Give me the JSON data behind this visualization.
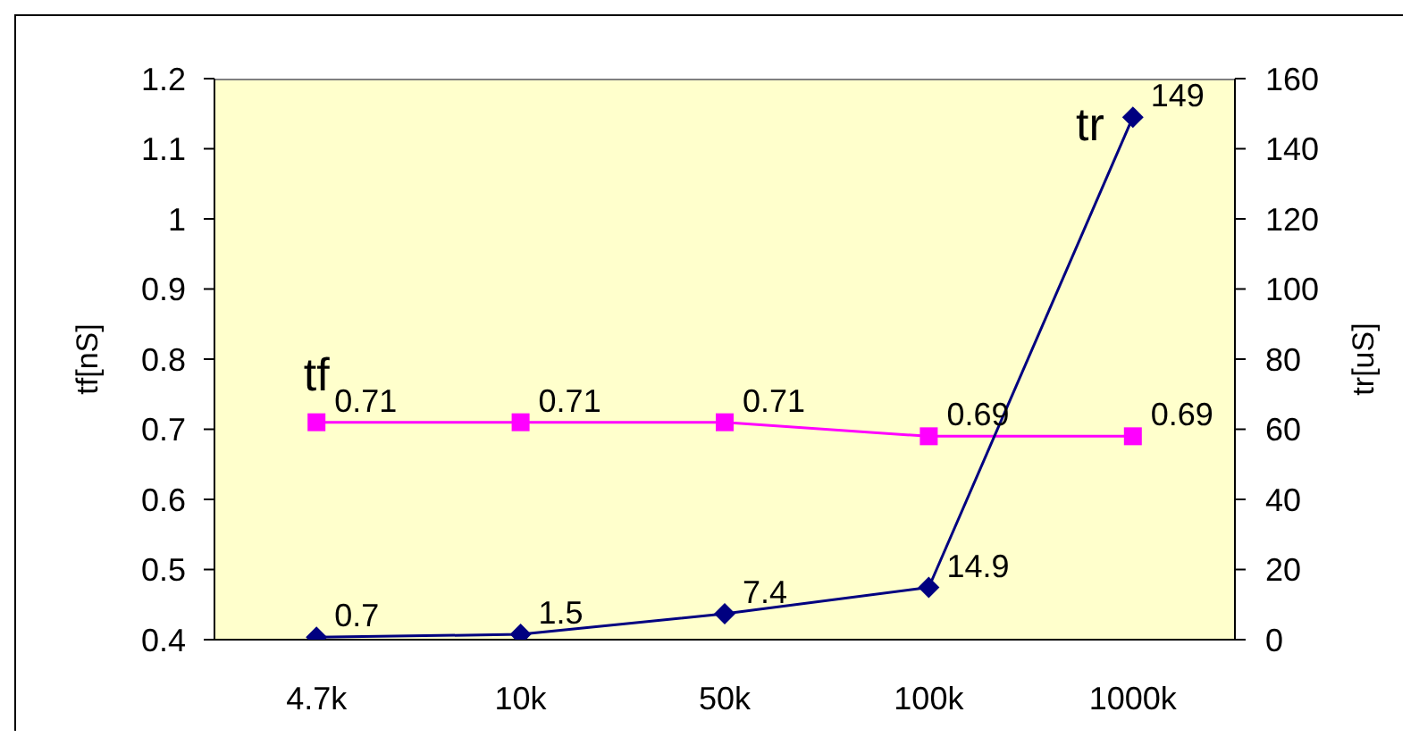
{
  "chart_data": {
    "type": "line",
    "categories": [
      "4.7k",
      "10k",
      "50k",
      "100k",
      "1000k"
    ],
    "ylabel": "tf[nS]",
    "y2label": "tr[uS]",
    "ylim": [
      0.4,
      1.2
    ],
    "yticks": [
      0.4,
      0.5,
      0.6,
      0.7,
      0.8,
      0.9,
      1,
      1.1,
      1.2
    ],
    "y2lim": [
      0,
      160
    ],
    "y2ticks": [
      0,
      20,
      40,
      60,
      80,
      100,
      120,
      140,
      160
    ],
    "data_labels": true,
    "series": [
      {
        "name": "tf",
        "color": "#ff00ff",
        "marker": "square",
        "values": [
          0.71,
          0.71,
          0.71,
          0.69,
          0.69
        ]
      },
      {
        "name": "tr",
        "color": "#000080",
        "marker": "diamond",
        "axis": "y2",
        "values": [
          0.7,
          1.5,
          7.4,
          14.9,
          149
        ]
      }
    ]
  }
}
